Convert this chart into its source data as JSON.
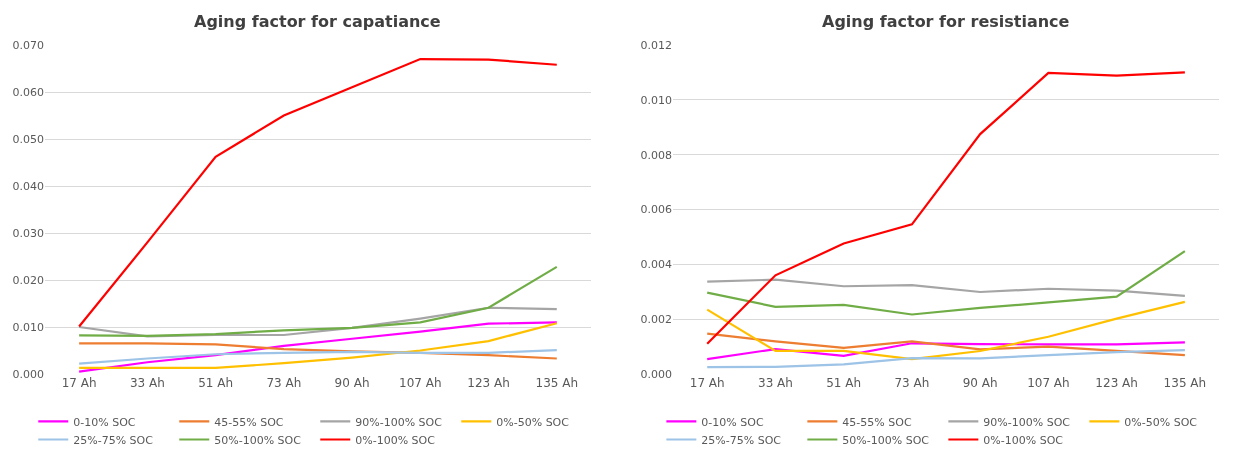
{
  "chart_data": [
    {
      "type": "line",
      "title": "Aging factor for capatiance",
      "categories": [
        "17 Ah",
        "33 Ah",
        "51 Ah",
        "73 Ah",
        "90 Ah",
        "107 Ah",
        "123 Ah",
        "135 Ah"
      ],
      "ylim": [
        0,
        0.07
      ],
      "yticks": [
        {
          "value": 0,
          "label": "0.000"
        },
        {
          "value": 0.01,
          "label": "0.010"
        },
        {
          "value": 0.02,
          "label": "0.020"
        },
        {
          "value": 0.03,
          "label": "0.030"
        },
        {
          "value": 0.04,
          "label": "0.040"
        },
        {
          "value": 0.05,
          "label": "0.050"
        },
        {
          "value": 0.06,
          "label": "0.060"
        },
        {
          "value": 0.07,
          "label": "0.070"
        }
      ],
      "grid": "y",
      "legend": "bottom",
      "marker": "none",
      "line_style": "solid",
      "series": [
        {
          "name": "0-10% SOC",
          "color": "#ff00ff",
          "values": [
            0.0005,
            0.0025,
            0.004,
            0.006,
            0.0075,
            0.009,
            0.0107,
            0.011
          ]
        },
        {
          "name": "45-55% SOC",
          "color": "#ed7d31",
          "values": [
            0.0065,
            0.0065,
            0.0063,
            0.0053,
            0.0048,
            0.0045,
            0.004,
            0.0033
          ]
        },
        {
          "name": "90%-100% SOC",
          "color": "#a5a5a5",
          "values": [
            0.01,
            0.008,
            0.0083,
            0.0083,
            0.0098,
            0.0118,
            0.0141,
            0.0138
          ]
        },
        {
          "name": "0%-50% SOC",
          "color": "#ffc000",
          "values": [
            0.0013,
            0.0013,
            0.0013,
            0.0023,
            0.0035,
            0.005,
            0.007,
            0.0108
          ]
        },
        {
          "name": "25%-75% SOC",
          "color": "#9dc3e6",
          "values": [
            0.0022,
            0.0033,
            0.0042,
            0.0045,
            0.0047,
            0.0045,
            0.0045,
            0.0051
          ]
        },
        {
          "name": "50%-100% SOC",
          "color": "#70ad47",
          "values": [
            0.0082,
            0.0081,
            0.0085,
            0.0093,
            0.0098,
            0.011,
            0.0141,
            0.0228
          ]
        },
        {
          "name": "0%-100% SOC",
          "color": "#ff0000",
          "values": [
            0.0101,
            0.028,
            0.0462,
            0.055,
            0.061,
            0.067,
            0.0669,
            0.0658
          ]
        }
      ]
    },
    {
      "type": "line",
      "title": "Aging factor for resistiance",
      "categories": [
        "17 Ah",
        "33 Ah",
        "51 Ah",
        "73 Ah",
        "90 Ah",
        "107 Ah",
        "123 Ah",
        "135 Ah"
      ],
      "ylim": [
        0,
        0.012
      ],
      "yticks": [
        {
          "value": 0,
          "label": "0.000"
        },
        {
          "value": 0.002,
          "label": "0.002"
        },
        {
          "value": 0.004,
          "label": "0.004"
        },
        {
          "value": 0.006,
          "label": "0.006"
        },
        {
          "value": 0.008,
          "label": "0.008"
        },
        {
          "value": 0.01,
          "label": "0.010"
        },
        {
          "value": 0.012,
          "label": "0.012"
        }
      ],
      "grid": "y",
      "legend": "bottom",
      "marker": "none",
      "line_style": "solid",
      "series": [
        {
          "name": "0-10% SOC",
          "color": "#ff00ff",
          "values": [
            0.00054,
            0.00091,
            0.00066,
            0.00112,
            0.00109,
            0.00108,
            0.00108,
            0.00115
          ]
        },
        {
          "name": "45-55% SOC",
          "color": "#ed7d31",
          "values": [
            0.00147,
            0.00119,
            0.00095,
            0.00119,
            0.0009,
            0.001,
            0.00084,
            0.00069
          ]
        },
        {
          "name": "90%-100% SOC",
          "color": "#a5a5a5",
          "values": [
            0.00337,
            0.00344,
            0.0032,
            0.00324,
            0.00299,
            0.00311,
            0.00304,
            0.00285
          ]
        },
        {
          "name": "0%-50% SOC",
          "color": "#ffc000",
          "values": [
            0.00235,
            0.00084,
            0.00084,
            0.00054,
            0.00084,
            0.00136,
            0.00202,
            0.00263
          ]
        },
        {
          "name": "25%-75% SOC",
          "color": "#9dc3e6",
          "values": [
            0.00025,
            0.00026,
            0.00035,
            0.00058,
            0.00057,
            0.00069,
            0.0008,
            0.00087
          ]
        },
        {
          "name": "50%-100% SOC",
          "color": "#70ad47",
          "values": [
            0.00297,
            0.00245,
            0.00252,
            0.00217,
            0.00241,
            0.00261,
            0.00282,
            0.00448
          ]
        },
        {
          "name": "0%-100% SOC",
          "color": "#ff0000",
          "values": [
            0.0011,
            0.0036,
            0.00476,
            0.00546,
            0.00875,
            0.01098,
            0.01088,
            0.011
          ]
        }
      ]
    }
  ]
}
